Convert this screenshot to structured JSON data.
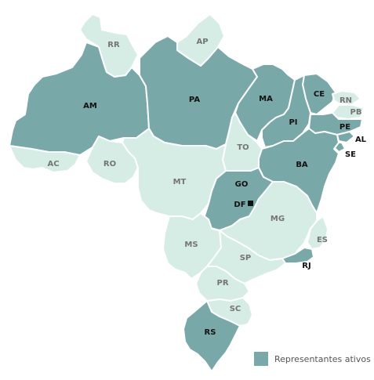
{
  "colors": {
    "active": "#78a9a8",
    "inactive": "#d5ede5",
    "active_label": "#111111",
    "inactive_label": "#757575",
    "outside_label": "#111111"
  },
  "states": [
    {
      "id": "RR",
      "name": "RR",
      "active": false
    },
    {
      "id": "AP",
      "name": "AP",
      "active": false
    },
    {
      "id": "AM",
      "name": "AM",
      "active": true
    },
    {
      "id": "PA",
      "name": "PA",
      "active": true
    },
    {
      "id": "MA",
      "name": "MA",
      "active": true
    },
    {
      "id": "CE",
      "name": "CE",
      "active": true
    },
    {
      "id": "RN",
      "name": "RN",
      "active": false
    },
    {
      "id": "PB",
      "name": "PB",
      "active": false
    },
    {
      "id": "PI",
      "name": "PI",
      "active": true
    },
    {
      "id": "PE",
      "name": "PE",
      "active": true
    },
    {
      "id": "AL",
      "name": "AL",
      "active": true
    },
    {
      "id": "SE",
      "name": "SE",
      "active": true
    },
    {
      "id": "BA",
      "name": "BA",
      "active": true
    },
    {
      "id": "TO",
      "name": "TO",
      "active": false
    },
    {
      "id": "AC",
      "name": "AC",
      "active": false
    },
    {
      "id": "RO",
      "name": "RO",
      "active": false
    },
    {
      "id": "MT",
      "name": "MT",
      "active": false
    },
    {
      "id": "GO",
      "name": "GO",
      "active": true
    },
    {
      "id": "DF",
      "name": "DF",
      "active": true
    },
    {
      "id": "MG",
      "name": "MG",
      "active": false
    },
    {
      "id": "ES",
      "name": "ES",
      "active": false
    },
    {
      "id": "RJ",
      "name": "RJ",
      "active": true
    },
    {
      "id": "MS",
      "name": "MS",
      "active": false
    },
    {
      "id": "SP",
      "name": "SP",
      "active": false
    },
    {
      "id": "PR",
      "name": "PR",
      "active": false
    },
    {
      "id": "SC",
      "name": "SC",
      "active": false
    },
    {
      "id": "RS",
      "name": "RS",
      "active": true
    }
  ],
  "legend": {
    "label": "Representantes ativos"
  }
}
